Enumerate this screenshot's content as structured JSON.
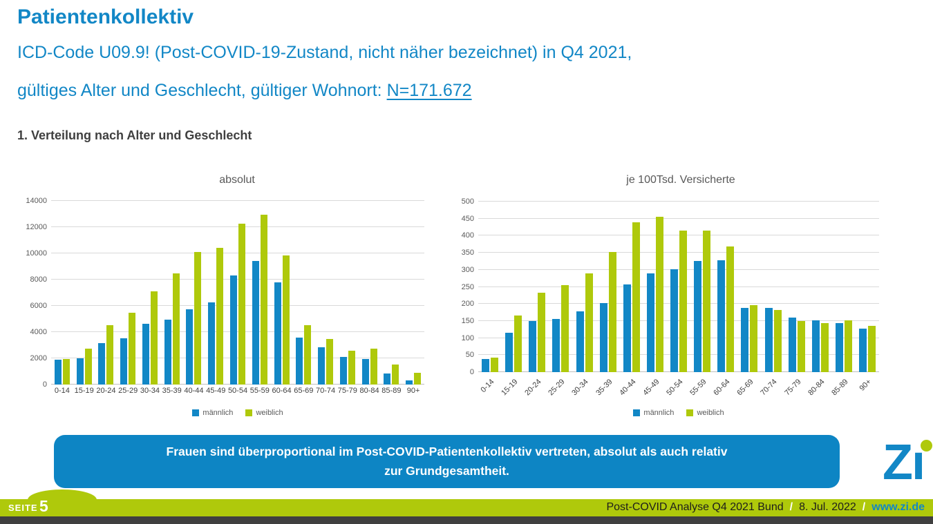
{
  "header": {
    "title": "Patientenkollektiv",
    "subtitle_line1": "ICD-Code U09.9! (Post-COVID-19-Zustand, nicht näher bezeichnet) in Q4 2021,",
    "subtitle_line2_prefix": "gültiges Alter und Geschlecht, gültiger Wohnort: ",
    "subtitle_link": "N=171.672",
    "section_heading": "1. Verteilung nach Alter und Geschlecht"
  },
  "colors": {
    "maennlich_blue": "#1287C6",
    "weiblich_green": "#AFC90B",
    "callout_blue": "#0D85C4",
    "footer_green": "#AFC90B",
    "footer_dark": "#3F3F3F",
    "text_gray": "#595959",
    "heading_gray": "#3F3F3F"
  },
  "chart_data": [
    {
      "type": "bar",
      "title": "absolut",
      "categories": [
        "0-14",
        "15-19",
        "20-24",
        "25-29",
        "30-34",
        "35-39",
        "40-44",
        "45-49",
        "50-54",
        "55-59",
        "60-64",
        "65-69",
        "70-74",
        "75-79",
        "80-84",
        "85-89",
        "90+"
      ],
      "series": [
        {
          "name": "männlich",
          "color": "#1287C6",
          "values": [
            1900,
            2000,
            3150,
            3550,
            4650,
            4950,
            5750,
            6250,
            8300,
            9400,
            7800,
            3600,
            2850,
            2100,
            1950,
            850,
            300
          ]
        },
        {
          "name": "weiblich",
          "color": "#AFC90B",
          "values": [
            1950,
            2750,
            4550,
            5500,
            7100,
            8450,
            10100,
            10400,
            12250,
            12950,
            9850,
            4550,
            3500,
            2600,
            2750,
            1550,
            870
          ]
        }
      ],
      "xlabel": "",
      "ylabel": "",
      "ylim": [
        0,
        14000
      ],
      "y_ticks": [
        0,
        2000,
        4000,
        6000,
        8000,
        10000,
        12000,
        14000
      ],
      "grid": true,
      "legend_position": "bottom",
      "x_label_rotation": 0
    },
    {
      "type": "bar",
      "title": "je 100Tsd. Versicherte",
      "categories": [
        "0-14",
        "15-19",
        "20-24",
        "25-29",
        "30-34",
        "35-39",
        "40-44",
        "45-49",
        "50-54",
        "55-59",
        "60-64",
        "65-69",
        "70-74",
        "75-79",
        "80-84",
        "85-89",
        "90+"
      ],
      "series": [
        {
          "name": "männlich",
          "color": "#1287C6",
          "values": [
            38,
            115,
            150,
            155,
            178,
            202,
            257,
            290,
            302,
            325,
            327,
            188,
            188,
            160,
            151,
            143,
            127
          ]
        },
        {
          "name": "weiblich",
          "color": "#AFC90B",
          "values": [
            42,
            167,
            233,
            256,
            289,
            353,
            440,
            456,
            416,
            415,
            368,
            197,
            183,
            149,
            144,
            152,
            135
          ]
        }
      ],
      "xlabel": "",
      "ylabel": "",
      "ylim": [
        0,
        500
      ],
      "y_ticks": [
        0,
        50,
        100,
        150,
        200,
        250,
        300,
        350,
        400,
        450,
        500
      ],
      "grid": true,
      "legend_position": "bottom",
      "x_label_rotation": -45
    }
  ],
  "callout": {
    "line1": "Frauen sind überproportional im Post-COVID-Patientenkollektiv vertreten, absolut als auch relativ",
    "line2": "zur Grundgesamtheit."
  },
  "logo": {
    "z": "Z",
    "i": "ı"
  },
  "footer": {
    "page_label": "SEITE",
    "page_number": "5",
    "doc_title": "Post-COVID Analyse Q4 2021 Bund",
    "separator1": "/",
    "date": "8. Jul. 2022",
    "separator2": "/",
    "website": "www.zi.de"
  }
}
